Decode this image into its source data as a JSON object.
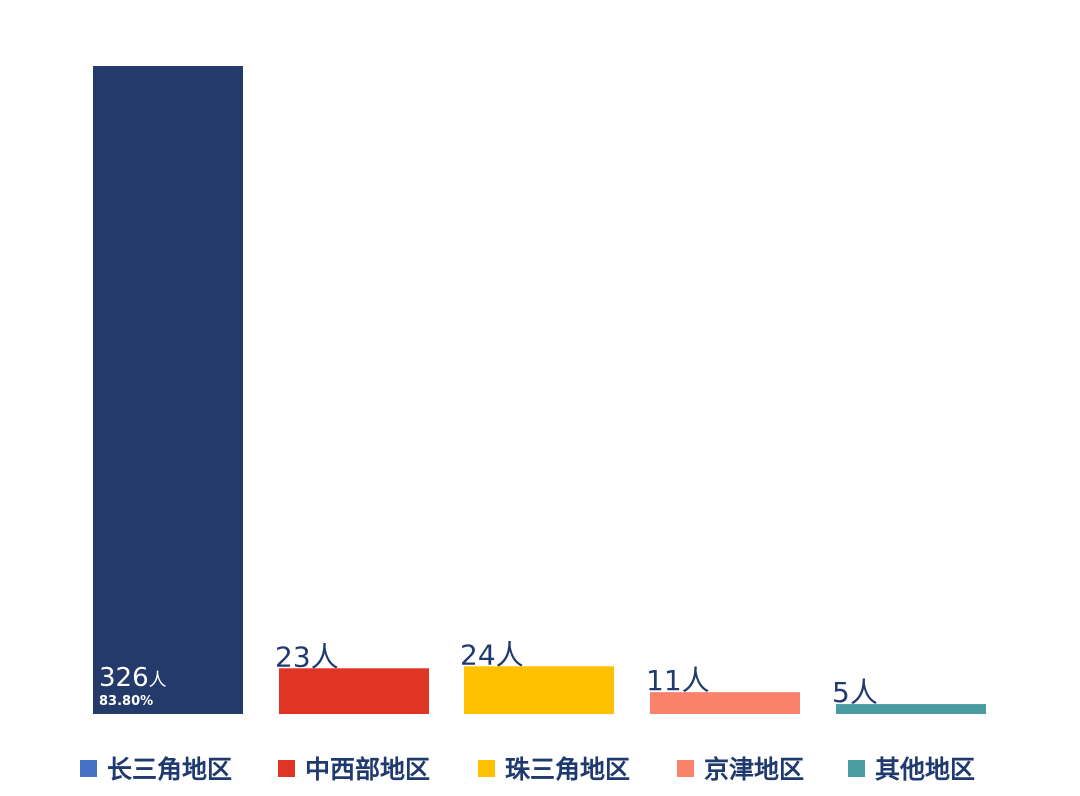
{
  "chart_data": {
    "type": "bar",
    "title": "",
    "xlabel": "",
    "ylabel": "",
    "ylim": [
      0,
      326
    ],
    "grid": false,
    "legend_position": "bottom",
    "categories": [
      "长三角地区",
      "中西部地区",
      "珠三角地区",
      "京津地区",
      "其他地区"
    ],
    "values": [
      326,
      23,
      24,
      11,
      5
    ],
    "data_labels": [
      "326",
      "23人",
      "24人",
      "11人",
      "5人"
    ],
    "unit_suffix": "人",
    "percentage_label": "83.80%",
    "colors": [
      "#243a6b",
      "#e03424",
      "#ffc000",
      "#f8826a",
      "#4b9ca2"
    ],
    "legend_swatch_colors": [
      "#4472c4",
      "#e03424",
      "#ffc000",
      "#f8826a",
      "#4b9ca2"
    ],
    "label_color": "#1f3a6e",
    "inner_label_color": "#ffffff"
  }
}
